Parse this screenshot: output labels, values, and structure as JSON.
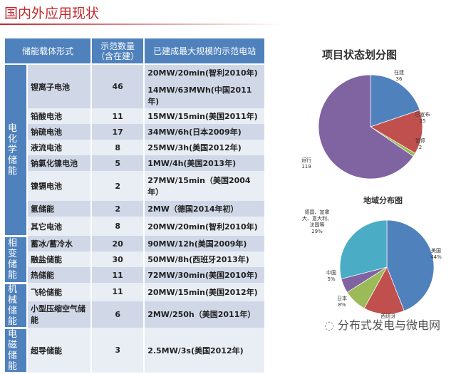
{
  "title": "国内外应用现状",
  "table": {
    "headers": [
      "储能载体形式",
      "示范数量\n（含在建）",
      "已建成最大规模的示范电站"
    ],
    "header_count_1": "示范数量",
    "header_count_2": "（含在建）",
    "groups": [
      {
        "category": "电化学储能",
        "rows": [
          {
            "name": "锂离子电池",
            "count": "46",
            "station": "20MW/20min(智利2010年)",
            "station2": "14MW/63MWh(中国2011年)"
          },
          {
            "name": "铅酸电池",
            "count": "11",
            "station": "15MW/15min(美国2011年)"
          },
          {
            "name": "钠硫电池",
            "count": "17",
            "station": "34MW/6h(日本2009年)"
          },
          {
            "name": "液流电池",
            "count": "8",
            "station": "25MW/3h(美国2012年)"
          },
          {
            "name": "钠氯化镍电池",
            "count": "5",
            "station": "1MW/4h(美国2013年)"
          },
          {
            "name": "镍镉电池",
            "count": "2",
            "station": "27MW/15min（美国2004年）"
          },
          {
            "name": "氢储能",
            "count": "2",
            "station": "2MW（德国2014年初）"
          },
          {
            "name": "其它电池",
            "count": "8",
            "station": "20MW/20min(智利2010年)"
          }
        ]
      },
      {
        "category": "相变储能",
        "rows": [
          {
            "name": "蓄冰/蓄冷水",
            "count": "20",
            "station": "90MW/12h(美国2009年)"
          },
          {
            "name": "融盐储能",
            "count": "30",
            "station": "50MW/8h(西班牙2013年)"
          },
          {
            "name": "热储能",
            "count": "11",
            "station": "72MW/30min(美国2010年)"
          }
        ]
      },
      {
        "category": "机械储能",
        "rows": [
          {
            "name": "飞轮储能",
            "count": "11",
            "station": "20MW/15min(美国2012年)"
          },
          {
            "name": "小型压缩空气储能",
            "count": "6",
            "station": "2MW/250h（美国2011年）"
          }
        ]
      },
      {
        "category": "电磁储能",
        "rows": [
          {
            "name": "超导储能",
            "count": "3",
            "station": "2.5MW/3s(美国2012年)"
          }
        ]
      }
    ]
  },
  "chart_data": [
    {
      "type": "pie",
      "title": "项目状态划分图",
      "labels": [
        "在建",
        "已宣布",
        "暂停",
        "运行"
      ],
      "values": [
        36,
        25,
        2,
        119
      ],
      "value_labels": [
        "36",
        "25",
        "2",
        "119"
      ],
      "colors": [
        "#4f81bd",
        "#c0504d",
        "#9bbb59",
        "#8064a2"
      ]
    },
    {
      "type": "pie",
      "title": "地域分布图",
      "labels": [
        "美国",
        "西班牙",
        "日本",
        "中国",
        "德国、加拿大、意大利、法国等"
      ],
      "values": [
        44,
        14,
        8,
        5,
        29
      ],
      "value_labels": [
        "44%",
        "",
        "8%",
        "5%",
        "29%"
      ],
      "colors": [
        "#4f81bd",
        "#c0504d",
        "#9bbb59",
        "#8064a2",
        "#4bacc6"
      ]
    }
  ],
  "watermark": "分布式发电与微电网"
}
